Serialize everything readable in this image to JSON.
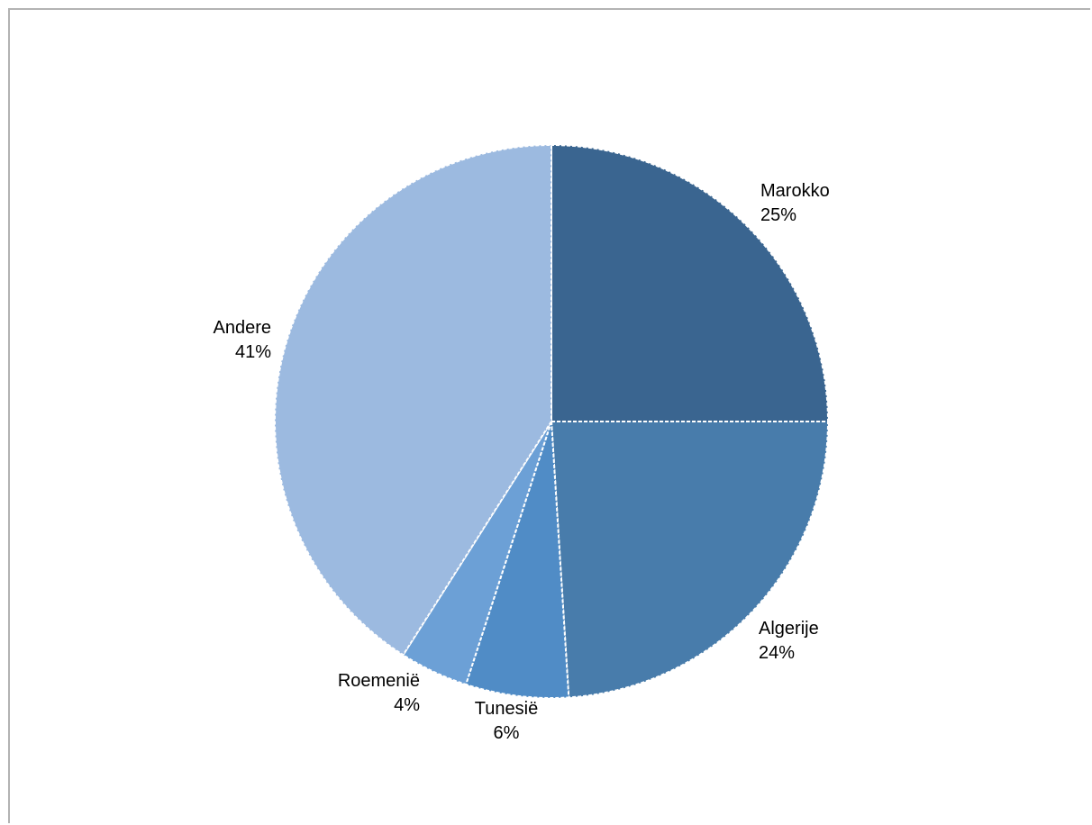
{
  "chart_data": {
    "type": "pie",
    "title": "",
    "start_angle_deg": 0,
    "direction": "clockwise",
    "slices": [
      {
        "label": "Marokko",
        "value": 25,
        "value_label": "25%",
        "color": "#3a6590"
      },
      {
        "label": "Algerije",
        "value": 24,
        "value_label": "24%",
        "color": "#487cab"
      },
      {
        "label": "Tunesië",
        "value": 6,
        "value_label": "6%",
        "color": "#508cc6"
      },
      {
        "label": "Roemenië",
        "value": 4,
        "value_label": "4%",
        "color": "#6ca0d6"
      },
      {
        "label": "Andere",
        "value": 41,
        "value_label": "41%",
        "color": "#9cbae0"
      }
    ],
    "legend": "none",
    "slice_border": "dashed white"
  }
}
